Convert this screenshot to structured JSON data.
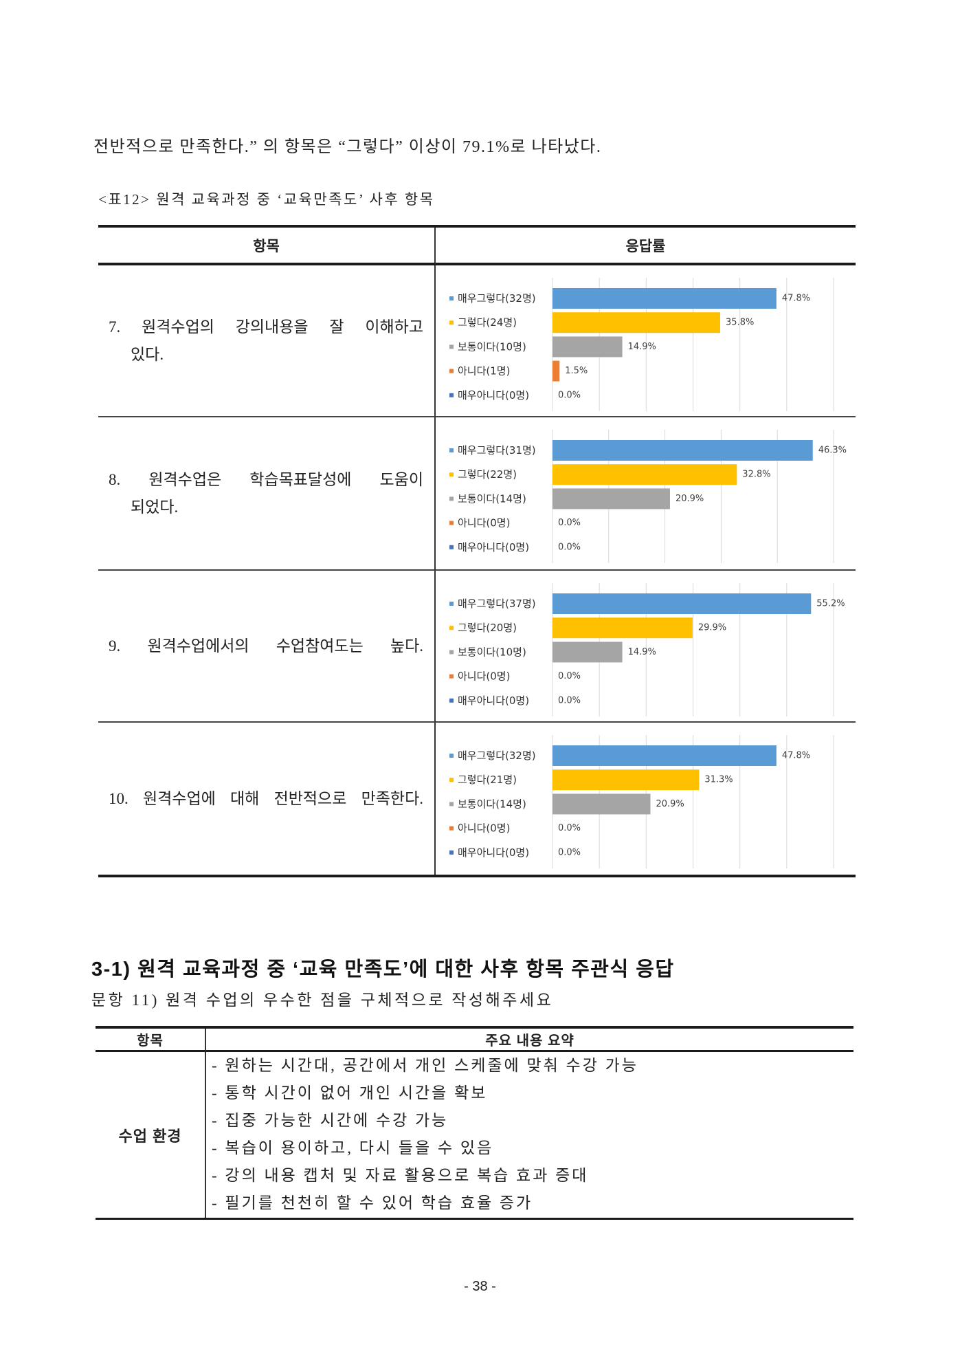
{
  "intro": {
    "text": "전반적으로 만족한다.” 의 항목은 “그렇다” 이상이 79.1%로 나타났다."
  },
  "caption": "<표12> 원격 교육과정 중 ‘교육만족도’ 사후 항목",
  "survey_table": {
    "headers": {
      "item": "항목",
      "response": "응답률"
    },
    "rows": [
      {
        "item_lines": [
          "7. 원격수업의 강의내용을 잘 이해하고",
          "있다."
        ]
      },
      {
        "item_lines": [
          "8. 원격수업은 학습목표달성에 도움이",
          "되었다."
        ]
      },
      {
        "item_lines": [
          "9. 원격수업에서의 수업참여도는 높다."
        ]
      },
      {
        "item_lines": [
          "10. 원격수업에 대해 전반적으로 만족한다."
        ]
      }
    ]
  },
  "style": {
    "category_colors": [
      "#5b9bd5",
      "#ffc000",
      "#a5a5a5",
      "#ed7d31",
      "#4472c4"
    ],
    "gridline_color": "#d9d9d9"
  },
  "chart_data": [
    {
      "type": "bar",
      "orientation": "horizontal",
      "categories": [
        "매우그렇다(32명)",
        "그렇다(24명)",
        "보통이다(10명)",
        "아니다(1명)",
        "매우아니다(0명)"
      ],
      "values": [
        47.8,
        35.8,
        14.9,
        1.5,
        0.0
      ],
      "data_labels": [
        "47.8%",
        "35.8%",
        "14.9%",
        "1.5%",
        "0.0%"
      ],
      "xlim": [
        0,
        60
      ],
      "grid": true
    },
    {
      "type": "bar",
      "orientation": "horizontal",
      "categories": [
        "매우그렇다(31명)",
        "그렇다(22명)",
        "보통이다(14명)",
        "아니다(0명)",
        "매우아니다(0명)"
      ],
      "values": [
        46.3,
        32.8,
        20.9,
        0.0,
        0.0
      ],
      "data_labels": [
        "46.3%",
        "32.8%",
        "20.9%",
        "0.0%",
        "0.0%"
      ],
      "xlim": [
        0,
        50
      ],
      "grid": true
    },
    {
      "type": "bar",
      "orientation": "horizontal",
      "categories": [
        "매우그렇다(37명)",
        "그렇다(20명)",
        "보통이다(10명)",
        "아니다(0명)",
        "매우아니다(0명)"
      ],
      "values": [
        55.2,
        29.9,
        14.9,
        0.0,
        0.0
      ],
      "data_labels": [
        "55.2%",
        "29.9%",
        "14.9%",
        "0.0%",
        "0.0%"
      ],
      "xlim": [
        0,
        60
      ],
      "grid": true
    },
    {
      "type": "bar",
      "orientation": "horizontal",
      "categories": [
        "매우그렇다(32명)",
        "그렇다(21명)",
        "보통이다(14명)",
        "아니다(0명)",
        "매우아니다(0명)"
      ],
      "values": [
        47.8,
        31.3,
        20.9,
        0.0,
        0.0
      ],
      "data_labels": [
        "47.8%",
        "31.3%",
        "20.9%",
        "0.0%",
        "0.0%"
      ],
      "xlim": [
        0,
        60
      ],
      "grid": true
    }
  ],
  "open_response": {
    "heading": "3-1) 원격 교육과정 중 ‘교육 만족도’에 대한 사후 항목 주관식 응답",
    "question": "문항 11) 원격 수업의 우수한 점을 구체적으로 작성해주세요",
    "table": {
      "headers": {
        "item": "항목",
        "summary": "주요 내용 요약"
      },
      "category": "수업 환경",
      "items": [
        "- 원하는 시간대, 공간에서 개인 스케줄에 맞춰 수강 가능",
        "- 통학 시간이 없어 개인 시간을 확보",
        "- 집중 가능한 시간에 수강 가능",
        "- 복습이 용이하고, 다시 들을 수 있음",
        "- 강의 내용 캡처 및 자료 활용으로 복습 효과 증대",
        "- 필기를 천천히 할 수 있어 학습 효율 증가"
      ]
    }
  },
  "page_number": "- 38 -"
}
